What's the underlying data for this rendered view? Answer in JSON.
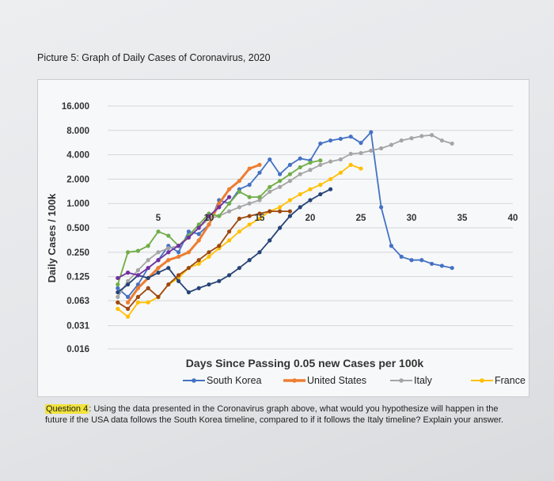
{
  "page_title": "Picture 5: Graph of Daily Cases of Coronavirus, 2020",
  "question": {
    "label": "Question 4",
    "text": ": Using the data presented in the Coronavirus graph above, what would you hypothesize will happen in the future if the USA data follows the South Korea timeline, compared to if it follows the Italy timeline? Explain your answer."
  },
  "chart_data": {
    "type": "line",
    "title": "",
    "xlabel": "Days Since Passing 0.05 new Cases per 100k",
    "ylabel": "Daily Cases / 100k",
    "yscale": "log2",
    "ylim": [
      0.016,
      16
    ],
    "xlim": [
      0,
      40
    ],
    "y_ticks": [
      16,
      8,
      4,
      2,
      1,
      0.5,
      0.25,
      0.125,
      0.063,
      0.031,
      0.016
    ],
    "y_tick_labels": [
      "16.000",
      "8.000",
      "4.000",
      "2.000",
      "1.000",
      "0.500",
      "0.250",
      "0.125",
      "0.063",
      "0.031",
      "0.016"
    ],
    "x_ticks": [
      5,
      10,
      15,
      20,
      25,
      30,
      35,
      40
    ],
    "x_tick_labels": [
      "5",
      "10",
      "15",
      "20",
      "25",
      "30",
      "35",
      "40"
    ],
    "x_axis_at_y": 1.0,
    "grid": "horizontal",
    "legend_position": "bottom",
    "series": [
      {
        "name": "South Korea",
        "color": "#4472c4",
        "x": [
          1,
          2,
          3,
          4,
          5,
          6,
          7,
          8,
          9,
          10,
          11,
          12,
          13,
          14,
          15,
          16,
          17,
          18,
          19,
          20,
          21,
          22,
          23,
          24,
          25,
          26,
          27,
          28,
          29,
          30,
          31,
          32,
          33,
          34
        ],
        "y": [
          0.09,
          0.07,
          0.1,
          0.16,
          0.2,
          0.3,
          0.25,
          0.45,
          0.42,
          0.55,
          1.1,
          1.0,
          1.5,
          1.7,
          2.4,
          3.5,
          2.3,
          3.0,
          3.6,
          3.4,
          5.5,
          6.0,
          6.3,
          6.7,
          5.6,
          7.6,
          0.9,
          0.3,
          0.22,
          0.2,
          0.2,
          0.18,
          0.17,
          0.16
        ]
      },
      {
        "name": "United States",
        "color": "#ed7d31",
        "x": [
          2,
          3,
          4,
          5,
          6,
          7,
          8,
          9,
          10,
          11,
          12,
          13,
          14,
          15
        ],
        "y": [
          0.06,
          0.09,
          0.12,
          0.16,
          0.2,
          0.22,
          0.25,
          0.35,
          0.55,
          1.0,
          1.5,
          1.9,
          2.7,
          3.0
        ]
      },
      {
        "name": "Italy",
        "color": "#a5a5a5",
        "x": [
          1,
          2,
          3,
          4,
          5,
          6,
          7,
          8,
          9,
          10,
          11,
          12,
          13,
          14,
          15,
          16,
          17,
          18,
          19,
          20,
          21,
          22,
          23,
          24,
          25,
          26,
          27,
          28,
          29,
          30,
          31,
          32,
          33,
          34
        ],
        "y": [
          0.07,
          0.11,
          0.15,
          0.2,
          0.25,
          0.28,
          0.3,
          0.38,
          0.5,
          0.65,
          0.7,
          0.8,
          0.9,
          1.0,
          1.1,
          1.4,
          1.6,
          1.9,
          2.3,
          2.6,
          3.0,
          3.3,
          3.5,
          4.1,
          4.2,
          4.5,
          4.8,
          5.3,
          6.0,
          6.4,
          6.8,
          7.0,
          6.0,
          5.5
        ]
      },
      {
        "name": "France",
        "color": "#ffc000",
        "x": [
          1,
          2,
          3,
          4,
          5,
          6,
          7,
          8,
          9,
          10,
          11,
          12,
          13,
          14,
          15,
          16,
          17,
          18,
          19,
          20,
          21,
          22,
          23,
          24,
          25
        ],
        "y": [
          0.05,
          0.04,
          0.06,
          0.06,
          0.07,
          0.1,
          0.12,
          0.16,
          0.18,
          0.22,
          0.28,
          0.35,
          0.45,
          0.55,
          0.65,
          0.8,
          0.9,
          1.1,
          1.3,
          1.5,
          1.7,
          2.0,
          2.4,
          3.0,
          2.7
        ]
      },
      {
        "name": "",
        "color": "#70ad47",
        "x": [
          1,
          2,
          3,
          4,
          5,
          6,
          7,
          8,
          9,
          10,
          11,
          12,
          13,
          14,
          15,
          16,
          17,
          18,
          19,
          20,
          21
        ],
        "y": [
          0.1,
          0.25,
          0.26,
          0.3,
          0.45,
          0.4,
          0.3,
          0.4,
          0.55,
          0.75,
          0.7,
          1.0,
          1.4,
          1.2,
          1.2,
          1.6,
          1.9,
          2.3,
          2.8,
          3.2,
          3.4
        ]
      },
      {
        "name": "",
        "color": "#264478",
        "x": [
          1,
          2,
          3,
          4,
          5,
          6,
          7,
          8,
          9,
          10,
          11,
          12,
          13,
          14,
          15,
          16,
          17,
          18,
          19,
          20,
          21,
          22
        ],
        "y": [
          0.08,
          0.1,
          0.13,
          0.12,
          0.14,
          0.16,
          0.11,
          0.08,
          0.09,
          0.1,
          0.11,
          0.13,
          0.16,
          0.2,
          0.25,
          0.35,
          0.5,
          0.7,
          0.9,
          1.1,
          1.3,
          1.5
        ]
      },
      {
        "name": "",
        "color": "#9e480e",
        "x": [
          1,
          2,
          3,
          4,
          5,
          6,
          7,
          8,
          9,
          10,
          11,
          12,
          13,
          14,
          15,
          16,
          17,
          18
        ],
        "y": [
          0.06,
          0.05,
          0.07,
          0.09,
          0.07,
          0.1,
          0.13,
          0.16,
          0.2,
          0.25,
          0.3,
          0.45,
          0.65,
          0.7,
          0.75,
          0.8,
          0.8,
          0.8
        ]
      },
      {
        "name": "",
        "color": "#7030a0",
        "x": [
          1,
          2,
          3,
          4,
          5,
          6,
          7,
          8,
          9,
          10,
          11,
          12
        ],
        "y": [
          0.12,
          0.14,
          0.13,
          0.16,
          0.2,
          0.25,
          0.3,
          0.38,
          0.5,
          0.7,
          0.9,
          1.2
        ]
      }
    ]
  }
}
